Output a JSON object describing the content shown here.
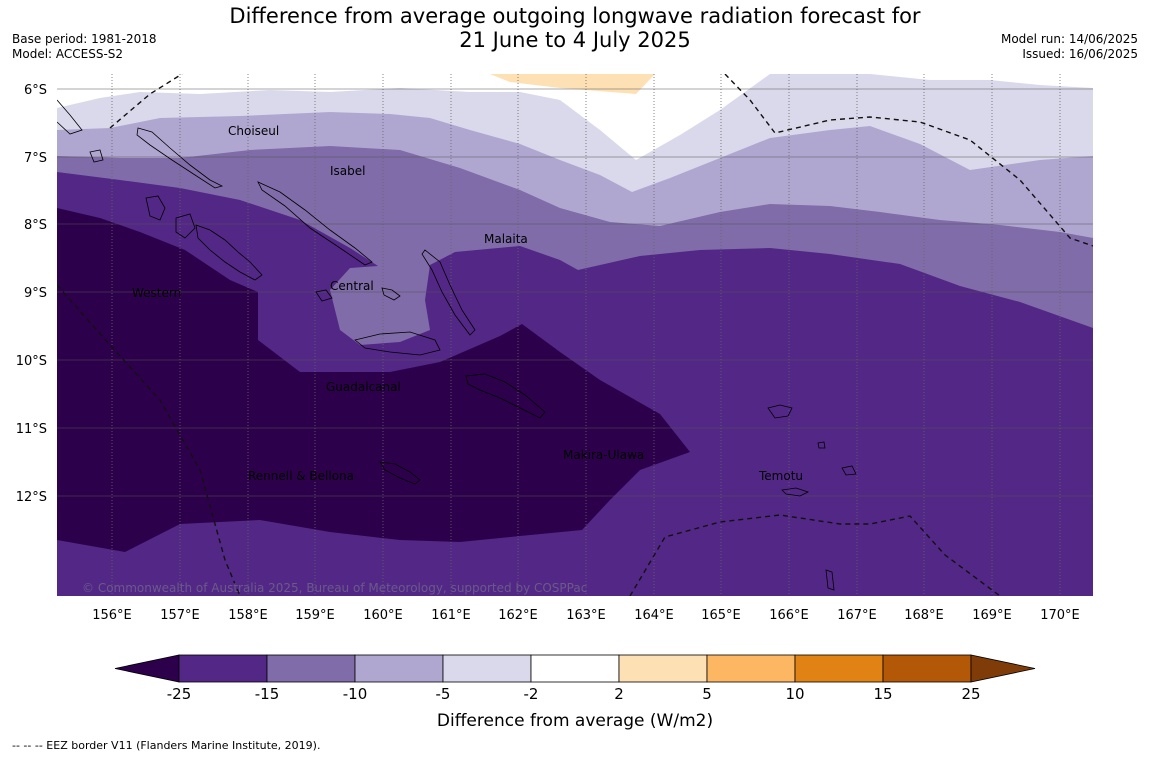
{
  "title": {
    "line1": "Difference from average outgoing longwave radiation forecast for",
    "line2": "21 June to 4 July 2025"
  },
  "meta_left": {
    "base_period": "Base period: 1981-2018",
    "model": "Model: ACCESS-S2"
  },
  "meta_right": {
    "model_run": "Model run: 14/06/2025",
    "issued": "Issued: 16/06/2025"
  },
  "map": {
    "lat_labels": [
      "6°S",
      "7°S",
      "8°S",
      "9°S",
      "10°S",
      "11°S",
      "12°S"
    ],
    "lon_labels": [
      "156°E",
      "157°E",
      "158°E",
      "159°E",
      "160°E",
      "161°E",
      "162°E",
      "163°E",
      "164°E",
      "165°E",
      "166°E",
      "167°E",
      "168°E",
      "169°E",
      "170°E"
    ],
    "region_labels": [
      "Choiseul",
      "Isabel",
      "Malaita",
      "Western",
      "Central",
      "Guadalcanal",
      "Makira-Ulawa",
      "Rennell & Bellona",
      "Temotu"
    ],
    "copyright": "© Commonwealth of Australia 2025, Bureau of Meteorology, supported by COSPPac"
  },
  "colorbar": {
    "ticks": [
      "-25",
      "-15",
      "-10",
      "-5",
      "-2",
      "2",
      "5",
      "10",
      "15",
      "25"
    ],
    "colors": [
      "#532786",
      "#7f6ca8",
      "#b0a7d1",
      "#d9d9eb",
      "#ffffff",
      "#fee0b5",
      "#fdb763",
      "#e08214",
      "#b35806"
    ],
    "under_color": "#2d004b",
    "over_color": "#7f3b08",
    "label": "Difference from average (W/m2)"
  },
  "footer": {
    "eez_note": "--  --  -- EEZ border V11 (Flanders Marine Institute, 2019)."
  }
}
